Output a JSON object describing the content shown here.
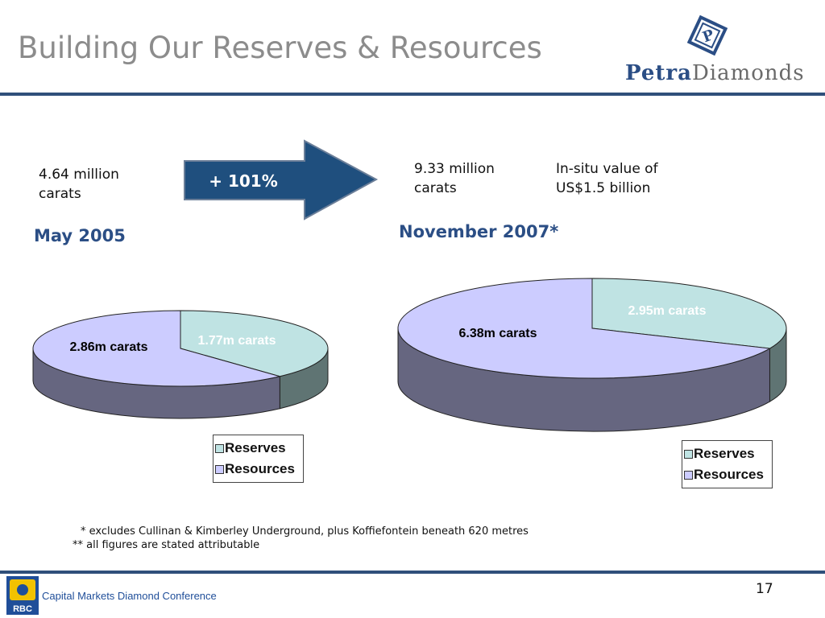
{
  "header": {
    "title": "Building Our Reserves & Resources"
  },
  "logo": {
    "wordmark_a": "Petra",
    "wordmark_b": "Diamonds"
  },
  "growth_arrow": {
    "label": "+ 101%"
  },
  "left_block": {
    "blurb": "4.64 million carats",
    "date": "May 2005"
  },
  "right_block": {
    "blurb": "9.33 million carats",
    "value_note": "In-situ value of US$1.5 billion",
    "date": "November 2007*"
  },
  "footnotes": {
    "line1": "* excludes Cullinan & Kimberley Underground, plus Koffiefontein beneath 620 metres",
    "line2": "** all figures are stated attributable"
  },
  "footer": {
    "conference": "Capital Markets Diamond Conference",
    "page": "17",
    "bank_logo": "RBC"
  },
  "colors": {
    "reserves": "#bfe3e3",
    "resources": "#ccccff",
    "reserves_side": "#5f7473",
    "resources_side": "#666680",
    "accent": "#2b4e85"
  },
  "chart_data": [
    {
      "type": "pie",
      "title": "May 2005",
      "categories": [
        "Reserves",
        "Resources"
      ],
      "values": [
        1.77,
        2.86
      ],
      "labels": [
        "1.77m carats",
        "2.86m carats"
      ],
      "legend": "bottom-right"
    },
    {
      "type": "pie",
      "title": "November 2007*",
      "categories": [
        "Reserves",
        "Resources"
      ],
      "values": [
        2.95,
        6.38
      ],
      "labels": [
        "2.95m carats",
        "6.38m carats"
      ],
      "legend": "bottom-right"
    }
  ]
}
